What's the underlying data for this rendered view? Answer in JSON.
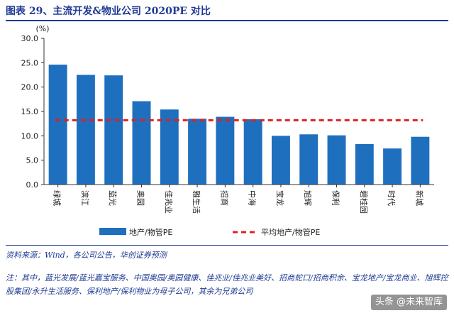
{
  "title": "图表 29、主流开发&物业公司 2020PE 对比",
  "source": "资料来源：Wind，各公司公告，华创证券预测",
  "note": "注：其中，蓝光发展/蓝光嘉宝服务、中国奥园/奥园健康、佳兆业/佳兆业美好、招商蛇口/招商积余、宝龙地产/宝龙商业、旭辉控股集团/永升生活服务、保利地产/保利物业为母子公司，其余为兄弟公司",
  "watermark": "头条 @未来智库",
  "colors": {
    "bar": "#1f6fbf",
    "avg": "#e02020",
    "title": "#1f3a93"
  },
  "chart_data": {
    "type": "bar",
    "unit_label": "(%)",
    "ylim": [
      0,
      30
    ],
    "yticks": [
      "0.0",
      "5.0",
      "10.0",
      "15.0",
      "20.0",
      "25.0",
      "30.0"
    ],
    "categories": [
      "绿城",
      "滨江",
      "蓝光",
      "奥园",
      "佳兆业",
      "雅生活",
      "招商",
      "中海",
      "宝龙",
      "旭辉",
      "保利",
      "碧桂园",
      "时代",
      "新城"
    ],
    "series": [
      {
        "name": "地产/物管PE",
        "values": [
          24.6,
          22.5,
          22.4,
          17.1,
          15.4,
          13.5,
          13.9,
          13.4,
          10.0,
          10.3,
          10.1,
          8.3,
          7.4,
          9.8
        ]
      }
    ],
    "average": {
      "name": "平均地产/物管PE",
      "value": 13.2
    },
    "legend_position": "bottom",
    "grid": false
  }
}
